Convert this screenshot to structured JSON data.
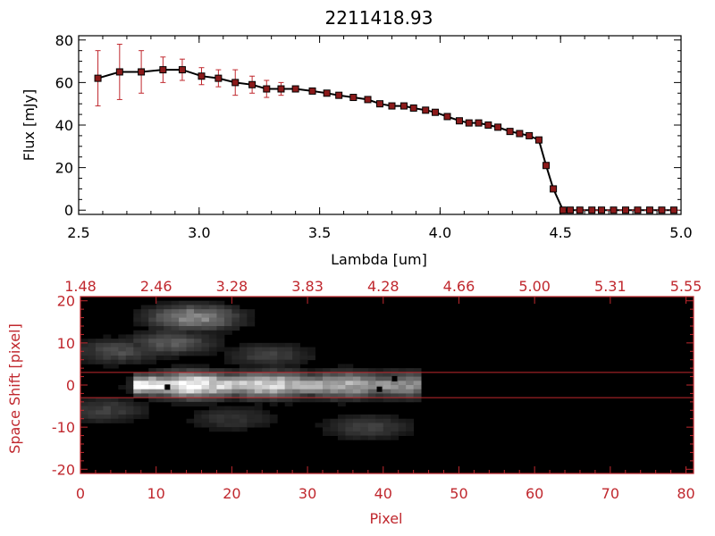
{
  "chart_data": [
    {
      "type": "line",
      "title": "2211418.93",
      "xlabel": "Lambda [um]",
      "ylabel": "Flux [mJy]",
      "xlim": [
        2.5,
        5.0
      ],
      "ylim": [
        -2,
        82
      ],
      "xticks": [
        "2.5",
        "3.0",
        "3.5",
        "4.0",
        "4.5",
        "5.0"
      ],
      "yticks": [
        "0",
        "20",
        "40",
        "60",
        "80"
      ],
      "series": [
        {
          "x": [
            2.58,
            2.67,
            2.76,
            2.85,
            2.93,
            3.01,
            3.08,
            3.15,
            3.22,
            3.28,
            3.34,
            3.4,
            3.47,
            3.53,
            3.58,
            3.64,
            3.7,
            3.75,
            3.8,
            3.85,
            3.89,
            3.94,
            3.98,
            4.03,
            4.08,
            4.12,
            4.16,
            4.2,
            4.24,
            4.29,
            4.33,
            4.37,
            4.41,
            4.44,
            4.47,
            4.51,
            4.54,
            4.58,
            4.63,
            4.67,
            4.72,
            4.77,
            4.82,
            4.87,
            4.92,
            4.97
          ],
          "y": [
            62,
            65,
            65,
            66,
            66,
            63,
            62,
            60,
            59,
            57,
            57,
            57,
            56,
            55,
            54,
            53,
            52,
            50,
            49,
            49,
            48,
            47,
            46,
            44,
            42,
            41,
            41,
            40,
            39,
            37,
            36,
            35,
            33,
            21,
            10,
            0,
            0,
            0,
            0,
            0,
            0,
            0,
            0,
            0,
            0,
            0
          ],
          "err": [
            13,
            13,
            10,
            6,
            5,
            4,
            4,
            6,
            4,
            4,
            3,
            0,
            0,
            0,
            0,
            0,
            0,
            0,
            0,
            0,
            0,
            0,
            0,
            0,
            0,
            0,
            0,
            0,
            0,
            0,
            0,
            0,
            0,
            0,
            0,
            0,
            0,
            0,
            0,
            0,
            0,
            0,
            0,
            0,
            0,
            0
          ]
        }
      ]
    },
    {
      "type": "heatmap",
      "xlabel": "Pixel",
      "ylabel": "Space Shift [pixel]",
      "xlim": [
        0,
        81
      ],
      "ylim": [
        -21,
        21
      ],
      "xticks": [
        "0",
        "10",
        "20",
        "30",
        "40",
        "50",
        "60",
        "70",
        "80"
      ],
      "yticks": [
        "-20",
        "-10",
        "0",
        "10",
        "20"
      ],
      "top_ticks": [
        "1.48",
        "2.46",
        "3.28",
        "3.83",
        "4.28",
        "4.66",
        "5.00",
        "5.31",
        "5.55"
      ],
      "hlines": [
        3,
        -3
      ],
      "spectrum_trace": {
        "pixel_range": [
          7,
          45
        ],
        "center": 0
      },
      "blobs": [
        {
          "pixel": 15,
          "shift": 0,
          "intensity": 1.0
        },
        {
          "pixel": 25,
          "shift": 0,
          "intensity": 0.85
        },
        {
          "pixel": 35,
          "shift": 0,
          "intensity": 0.7
        },
        {
          "pixel": 43,
          "shift": 0,
          "intensity": 0.55
        },
        {
          "pixel": 15,
          "shift": 16,
          "intensity": 0.55
        },
        {
          "pixel": 12,
          "shift": 10,
          "intensity": 0.35
        },
        {
          "pixel": 5,
          "shift": 8,
          "intensity": 0.3
        },
        {
          "pixel": 25,
          "shift": 7,
          "intensity": 0.25
        },
        {
          "pixel": 3,
          "shift": -6,
          "intensity": 0.25
        },
        {
          "pixel": 20,
          "shift": -8,
          "intensity": 0.2
        },
        {
          "pixel": 38,
          "shift": -10,
          "intensity": 0.25
        }
      ]
    }
  ]
}
